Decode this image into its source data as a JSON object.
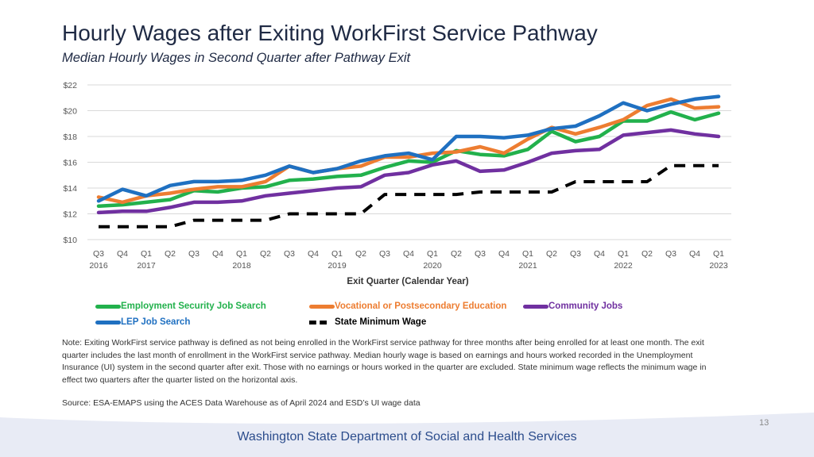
{
  "title": "Hourly Wages after Exiting WorkFirst Service Pathway",
  "subtitle": "Median Hourly Wages in Second Quarter after Pathway Exit",
  "note": "Note: Exiting WorkFirst service pathway is defined as not being enrolled in the WorkFirst service pathway for three months after being enrolled for at least one month. The exit quarter includes the last month of enrollment in the WorkFirst service pathway. Median hourly wage is based on earnings and hours worked recorded in the Unemployment Insurance (UI) system in the second quarter after exit. Those with no earnings or hours worked in the quarter are excluded. State minimum wage reflects the minimum wage in effect two quarters after the quarter listed on the horizontal axis.",
  "source": "Source: ESA-EMAPS using the ACES Data Warehouse as of April 2024 and ESD’s UI wage data",
  "page_number": "13",
  "footer": "Washington State Department of Social and Health Services",
  "colors": {
    "employment": "#22b14c",
    "vocational": "#ed7d31",
    "community": "#7030a0",
    "lep": "#1f70c1",
    "minimum": "#000000",
    "footer_band": "#e8ebf5"
  },
  "chart_data": {
    "type": "line",
    "xlabel": "Exit Quarter (Calendar Year)",
    "ylabel": "",
    "ylim": [
      10,
      22
    ],
    "yticks": [
      "$10",
      "$12",
      "$14",
      "$16",
      "$18",
      "$20",
      "$22"
    ],
    "ytick_values": [
      10,
      12,
      14,
      16,
      18,
      20,
      22
    ],
    "categories": [
      "Q3",
      "Q4",
      "Q1",
      "Q2",
      "Q3",
      "Q4",
      "Q1",
      "Q2",
      "Q3",
      "Q4",
      "Q1",
      "Q2",
      "Q3",
      "Q4",
      "Q1",
      "Q2",
      "Q3",
      "Q4",
      "Q1",
      "Q2",
      "Q3",
      "Q4",
      "Q1",
      "Q2",
      "Q3",
      "Q4",
      "Q1"
    ],
    "year_labels": [
      {
        "index": 0,
        "label": "2016"
      },
      {
        "index": 2,
        "label": "2017"
      },
      {
        "index": 6,
        "label": "2018"
      },
      {
        "index": 10,
        "label": "2019"
      },
      {
        "index": 14,
        "label": "2020"
      },
      {
        "index": 18,
        "label": "2021"
      },
      {
        "index": 22,
        "label": "2022"
      },
      {
        "index": 26,
        "label": "2023"
      }
    ],
    "grid": true,
    "legend_position": "bottom",
    "series": [
      {
        "key": "employment",
        "name": "Employment Security Job Search",
        "style": "solid",
        "values": [
          12.6,
          12.7,
          12.9,
          13.1,
          13.8,
          13.7,
          14.0,
          14.1,
          14.6,
          14.7,
          14.9,
          15.0,
          15.6,
          16.1,
          16.0,
          16.9,
          16.6,
          16.5,
          17.0,
          18.4,
          17.6,
          18.0,
          19.2,
          19.2,
          19.9,
          19.3,
          19.8
        ]
      },
      {
        "key": "vocational",
        "name": "Vocational or Postsecondary Education",
        "style": "solid",
        "values": [
          13.3,
          12.9,
          13.4,
          13.6,
          13.9,
          14.1,
          14.1,
          14.5,
          15.7,
          15.2,
          15.5,
          15.7,
          16.4,
          16.4,
          16.7,
          16.8,
          17.2,
          16.7,
          17.8,
          18.7,
          18.2,
          18.7,
          19.3,
          20.4,
          20.9,
          20.2,
          20.3
        ]
      },
      {
        "key": "community",
        "name": "Community Jobs",
        "style": "solid",
        "values": [
          12.1,
          12.2,
          12.2,
          12.5,
          12.9,
          12.9,
          13.0,
          13.4,
          13.6,
          13.8,
          14.0,
          14.1,
          15.0,
          15.2,
          15.8,
          16.1,
          15.3,
          15.4,
          16.0,
          16.7,
          16.9,
          17.0,
          18.1,
          18.3,
          18.5,
          18.2,
          18.0
        ]
      },
      {
        "key": "lep",
        "name": "LEP Job Search",
        "style": "solid",
        "values": [
          13.0,
          13.9,
          13.4,
          14.2,
          14.5,
          14.5,
          14.6,
          15.0,
          15.7,
          15.2,
          15.5,
          16.1,
          16.5,
          16.7,
          16.2,
          18.0,
          18.0,
          17.9,
          18.1,
          18.6,
          18.8,
          19.6,
          20.6,
          20.0,
          20.5,
          20.9,
          21.1
        ]
      },
      {
        "key": "minimum",
        "name": "State Minimum Wage",
        "style": "dashed",
        "values": [
          11.0,
          11.0,
          11.0,
          11.0,
          11.5,
          11.5,
          11.5,
          11.5,
          12.0,
          12.0,
          12.0,
          12.0,
          13.5,
          13.5,
          13.5,
          13.5,
          13.69,
          13.69,
          13.69,
          13.69,
          14.49,
          14.49,
          14.49,
          14.49,
          15.74,
          15.74,
          15.74
        ]
      }
    ]
  }
}
